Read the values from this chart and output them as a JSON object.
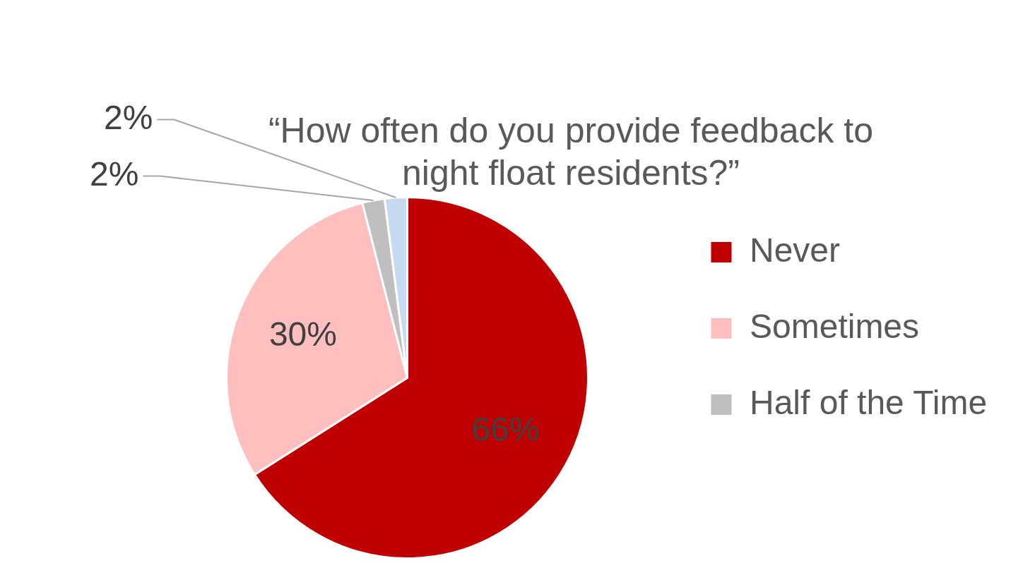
{
  "chart_data": {
    "type": "pie",
    "title": [
      "“How often do you provide feedback to",
      "night float residents?”"
    ],
    "categories": [
      "Never",
      "Sometimes",
      "Half of the Time",
      null
    ],
    "values": [
      66,
      30,
      2,
      2
    ],
    "colors": [
      "#c00000",
      "#ffbfbf",
      "#bfbfbf",
      "#c5d9f1"
    ],
    "value_labels": [
      "66%",
      "30%",
      "2%",
      "2%"
    ],
    "legend": "right"
  }
}
